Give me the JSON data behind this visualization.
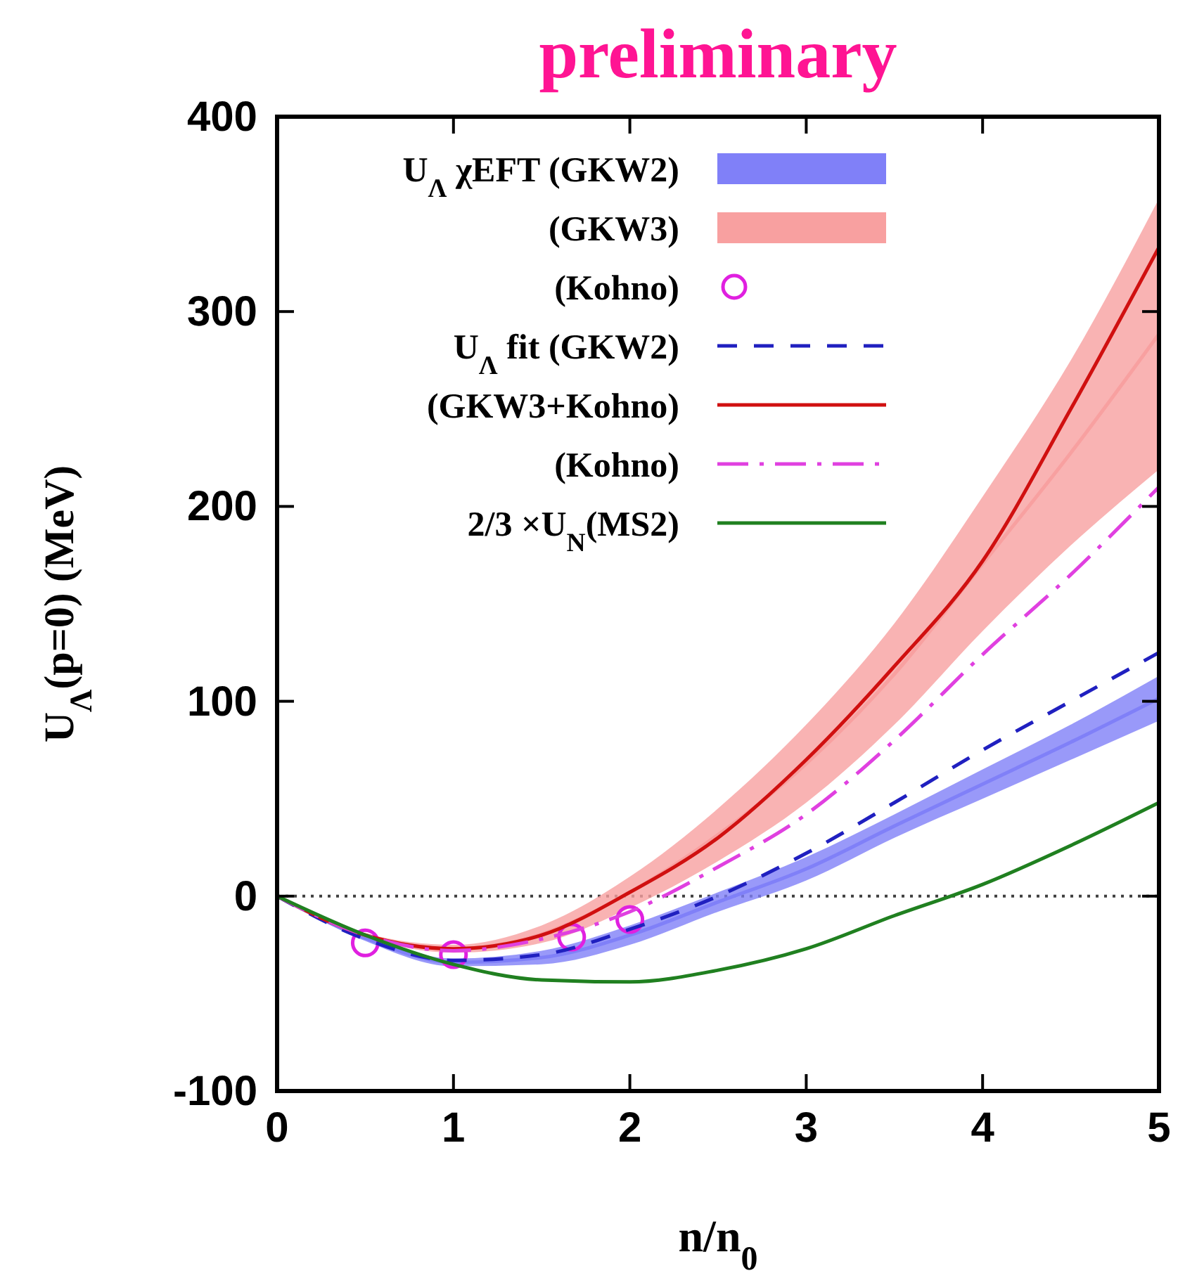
{
  "chart_data": {
    "type": "line",
    "title": "preliminary",
    "xlabel": "n/n$_{0}$",
    "ylabel": "U$_{Λ}$(p=0) (MeV)",
    "xlim": [
      0,
      5
    ],
    "ylim": [
      -100,
      400
    ],
    "xticks": [
      0,
      1,
      2,
      3,
      4,
      5
    ],
    "yticks": [
      -100,
      0,
      100,
      200,
      300,
      400
    ],
    "grid": false,
    "legend": "top left",
    "ref_lines": [
      {
        "axis": "y",
        "value": 0,
        "color": "#404040",
        "line_style": "dotted"
      }
    ],
    "series": [
      {
        "name": "U$_{Λ}$ χEFT (GKW2)",
        "color": "#8080f8",
        "x": [
          0,
          0.5,
          1,
          1.5,
          2,
          2.5,
          3,
          3.5,
          4,
          4.5,
          5
        ],
        "values": [
          0,
          -21.5,
          -34,
          -31.5,
          -20,
          -3,
          14,
          36,
          57.5,
          79,
          101.5
        ],
        "lower": [
          0,
          -23,
          -36,
          -35,
          -25,
          -8,
          8,
          30,
          50,
          70,
          90
        ],
        "upper": [
          0,
          -20,
          -32,
          -28,
          -15,
          2,
          20,
          42,
          65,
          88,
          113
        ]
      },
      {
        "name": "(GKW3)",
        "color": "#f8a0a0",
        "x": [
          0,
          0.5,
          1,
          1.5,
          2,
          2.5,
          3,
          3.5,
          4,
          4.5,
          5
        ],
        "values": [
          0,
          -20,
          -27,
          -19.5,
          2,
          31.5,
          68,
          114,
          170.5,
          227.5,
          288.5
        ],
        "lower": [
          0,
          -21,
          -29,
          -24,
          -6,
          18,
          48,
          88,
          136,
          180,
          219
        ],
        "upper": [
          0,
          -19,
          -25,
          -15,
          10,
          45,
          88,
          140,
          205,
          275,
          358
        ]
      },
      {
        "name": "(Kohno)",
        "type": "scatter",
        "color": "#e020e0",
        "marker": "circle",
        "x": [
          0.5,
          1,
          1.67,
          2
        ],
        "values": [
          -24,
          -30,
          -21,
          -12
        ]
      },
      {
        "name": "U$_{Λ}$ fit (GKW2)",
        "color": "#2020c0",
        "line_style": "dashed",
        "x": [
          0,
          0.5,
          1,
          1.5,
          2,
          2.5,
          3,
          3.5,
          4,
          4.5,
          5
        ],
        "values": [
          0,
          -22,
          -33,
          -30,
          -17,
          0,
          22,
          48,
          75,
          100,
          125
        ]
      },
      {
        "name": "(GKW3+Kohno)",
        "color": "#d01010",
        "line_style": "solid",
        "x": [
          0,
          0.5,
          1,
          1.5,
          2,
          2.5,
          3,
          3.5,
          4,
          4.5,
          5
        ],
        "values": [
          0,
          -20,
          -27,
          -20,
          2,
          30,
          70,
          118,
          172,
          250,
          333
        ]
      },
      {
        "name": "(Kohno)",
        "color": "#e040e0",
        "line_style": "dashdot",
        "x": [
          0,
          0.5,
          1,
          1.5,
          2,
          2.5,
          3,
          3.5,
          4,
          4.5,
          5
        ],
        "values": [
          0,
          -20,
          -28,
          -22,
          -8,
          15,
          42,
          80,
          124,
          165,
          210
        ]
      },
      {
        "name": "2/3 ×U$_{N}$(MS2)",
        "color": "#208020",
        "line_style": "solid",
        "x": [
          0,
          0.5,
          1,
          1.5,
          2,
          2.5,
          3,
          3.5,
          4,
          4.5,
          5
        ],
        "values": [
          0,
          -20,
          -35,
          -43,
          -44,
          -38,
          -27,
          -10,
          6,
          26,
          48
        ]
      }
    ]
  }
}
